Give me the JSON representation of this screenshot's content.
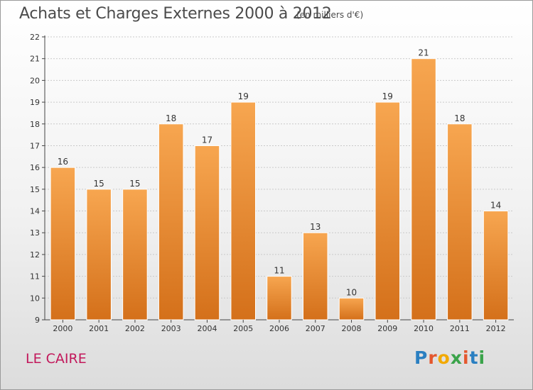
{
  "header": {
    "title": "Achats et Charges Externes 2000 à 2012",
    "subtitle": "(en milliers d'€)"
  },
  "footer": {
    "town": "LE CAIRE",
    "brand": "Proxiti",
    "brand_letters": [
      {
        "char": "P",
        "color": "#2a7fc1"
      },
      {
        "char": "r",
        "color": "#e4572e"
      },
      {
        "char": "o",
        "color": "#f2a900"
      },
      {
        "char": "x",
        "color": "#3aa34a"
      },
      {
        "char": "i",
        "color": "#e4572e"
      },
      {
        "char": "t",
        "color": "#2a7fc1"
      },
      {
        "char": "i",
        "color": "#3aa34a"
      }
    ]
  },
  "colors": {
    "bar_top": "#f7a650",
    "bar_bottom": "#d4701a",
    "town": "#c2185b"
  },
  "chart_data": {
    "type": "bar",
    "title": "Achats et Charges Externes 2000 à 2012",
    "subtitle": "(en milliers d'€)",
    "xlabel": "",
    "ylabel": "",
    "categories": [
      "2000",
      "2001",
      "2002",
      "2003",
      "2004",
      "2005",
      "2006",
      "2007",
      "2008",
      "2009",
      "2010",
      "2011",
      "2012"
    ],
    "values": [
      16,
      15,
      15,
      18,
      17,
      19,
      11,
      13,
      10,
      19,
      21,
      18,
      14
    ],
    "ylim": [
      9,
      22
    ],
    "yticks": [
      9,
      10,
      11,
      12,
      13,
      14,
      15,
      16,
      17,
      18,
      19,
      20,
      21,
      22
    ],
    "grid": true,
    "legend": "none"
  }
}
